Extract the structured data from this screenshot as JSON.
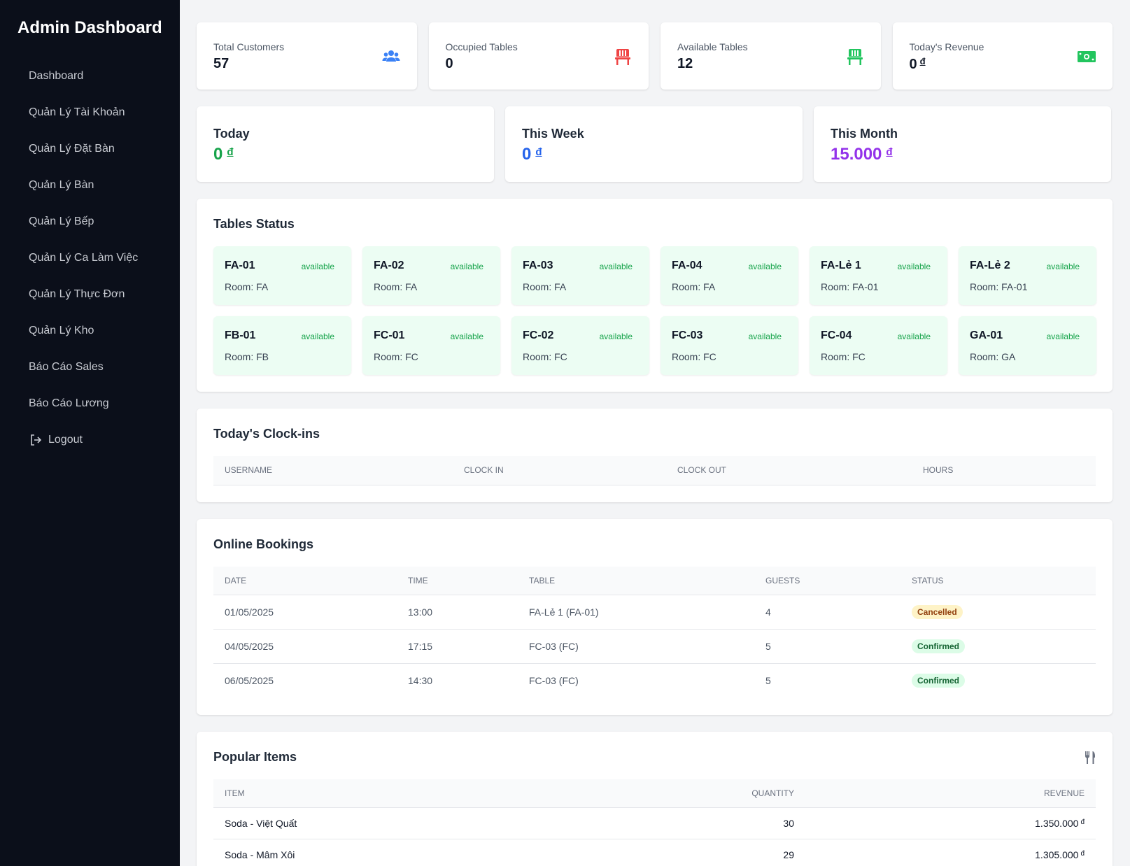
{
  "sidebar": {
    "title": "Admin Dashboard",
    "items": [
      {
        "label": "Dashboard"
      },
      {
        "label": "Quản Lý Tài Khoản"
      },
      {
        "label": "Quản Lý Đặt Bàn"
      },
      {
        "label": "Quản Lý Bàn"
      },
      {
        "label": "Quản Lý Bếp"
      },
      {
        "label": "Quản Lý Ca Làm Việc"
      },
      {
        "label": "Quản Lý Thực Đơn"
      },
      {
        "label": "Quản Lý Kho"
      },
      {
        "label": "Báo Cáo Sales"
      },
      {
        "label": "Báo Cáo Lương"
      }
    ],
    "logout": {
      "label": "Logout",
      "icon": "logout-icon"
    }
  },
  "stats": [
    {
      "label": "Total Customers",
      "value": "57",
      "icon": "users-icon",
      "color": "#3b82f6"
    },
    {
      "label": "Occupied Tables",
      "value": "0",
      "icon": "chair-icon",
      "color": "#ef4444"
    },
    {
      "label": "Available Tables",
      "value": "12",
      "icon": "chair-icon",
      "color": "#22c55e"
    },
    {
      "label": "Today's Revenue",
      "value": "0",
      "currency": "đ",
      "icon": "money-icon",
      "color": "#22c55e"
    }
  ],
  "periods": [
    {
      "label": "Today",
      "value": "0",
      "currency": "đ",
      "color": "#16a34a"
    },
    {
      "label": "This Week",
      "value": "0",
      "currency": "đ",
      "color": "#2563eb"
    },
    {
      "label": "This Month",
      "value": "15.000",
      "currency": "đ",
      "color": "#9333ea"
    }
  ],
  "tables_status": {
    "title": "Tables Status",
    "tables": [
      {
        "name": "FA-01",
        "status": "available",
        "room": "Room: FA"
      },
      {
        "name": "FA-02",
        "status": "available",
        "room": "Room: FA"
      },
      {
        "name": "FA-03",
        "status": "available",
        "room": "Room: FA"
      },
      {
        "name": "FA-04",
        "status": "available",
        "room": "Room: FA"
      },
      {
        "name": "FA-Lẻ 1",
        "status": "available",
        "room": "Room: FA-01"
      },
      {
        "name": "FA-Lẻ 2",
        "status": "available",
        "room": "Room: FA-01"
      },
      {
        "name": "FB-01",
        "status": "available",
        "room": "Room: FB"
      },
      {
        "name": "FC-01",
        "status": "available",
        "room": "Room: FC"
      },
      {
        "name": "FC-02",
        "status": "available",
        "room": "Room: FC"
      },
      {
        "name": "FC-03",
        "status": "available",
        "room": "Room: FC"
      },
      {
        "name": "FC-04",
        "status": "available",
        "room": "Room: FC"
      },
      {
        "name": "GA-01",
        "status": "available",
        "room": "Room: GA"
      }
    ]
  },
  "clockins": {
    "title": "Today's Clock-ins",
    "columns": [
      "USERNAME",
      "CLOCK IN",
      "CLOCK OUT",
      "HOURS"
    ]
  },
  "bookings": {
    "title": "Online Bookings",
    "columns": [
      "DATE",
      "TIME",
      "TABLE",
      "GUESTS",
      "STATUS"
    ],
    "rows": [
      {
        "date": "01/05/2025",
        "time": "13:00",
        "table": "FA-Lẻ 1 (FA-01)",
        "guests": "4",
        "status": "Cancelled"
      },
      {
        "date": "04/05/2025",
        "time": "17:15",
        "table": "FC-03 (FC)",
        "guests": "5",
        "status": "Confirmed"
      },
      {
        "date": "06/05/2025",
        "time": "14:30",
        "table": "FC-03 (FC)",
        "guests": "5",
        "status": "Confirmed"
      }
    ]
  },
  "popular": {
    "title": "Popular Items",
    "icon": "utensils-icon",
    "columns": [
      "ITEM",
      "QUANTITY",
      "REVENUE"
    ],
    "rows": [
      {
        "item": "Soda - Việt Quất",
        "quantity": "30",
        "revenue": "1.350.000",
        "currency": "đ"
      },
      {
        "item": "Soda - Mâm Xôi",
        "quantity": "29",
        "revenue": "1.305.000",
        "currency": "đ"
      }
    ]
  }
}
